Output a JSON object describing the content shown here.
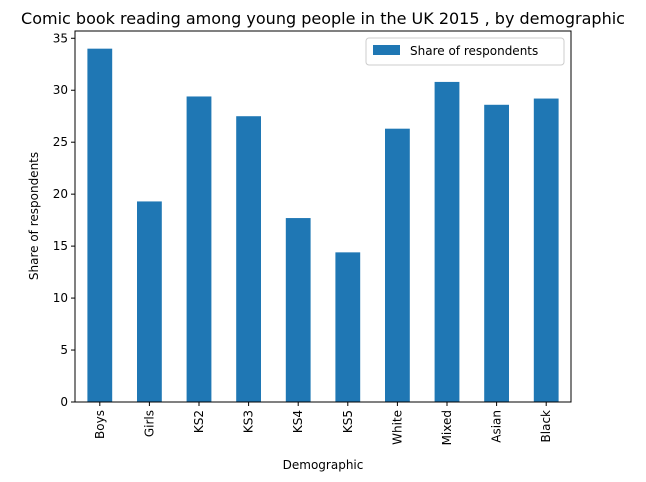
{
  "chart_data": {
    "type": "bar",
    "title": "Comic book reading among young people in the UK 2015 , by demographic",
    "xlabel": "Demographic",
    "ylabel": "Share of respondents",
    "categories": [
      "Boys",
      "Girls",
      "KS2",
      "KS3",
      "KS4",
      "KS5",
      "White",
      "Mixed",
      "Asian",
      "Black"
    ],
    "series": [
      {
        "name": "Share of respondents",
        "values": [
          34.0,
          19.3,
          29.4,
          27.5,
          17.7,
          14.4,
          26.3,
          30.8,
          28.6,
          29.2
        ],
        "color": "#1f77b4"
      }
    ],
    "ylim": [
      0,
      35.7
    ],
    "yticks": [
      0,
      5,
      10,
      15,
      20,
      25,
      30,
      35
    ],
    "grid": false,
    "legend_position": "top-right"
  }
}
